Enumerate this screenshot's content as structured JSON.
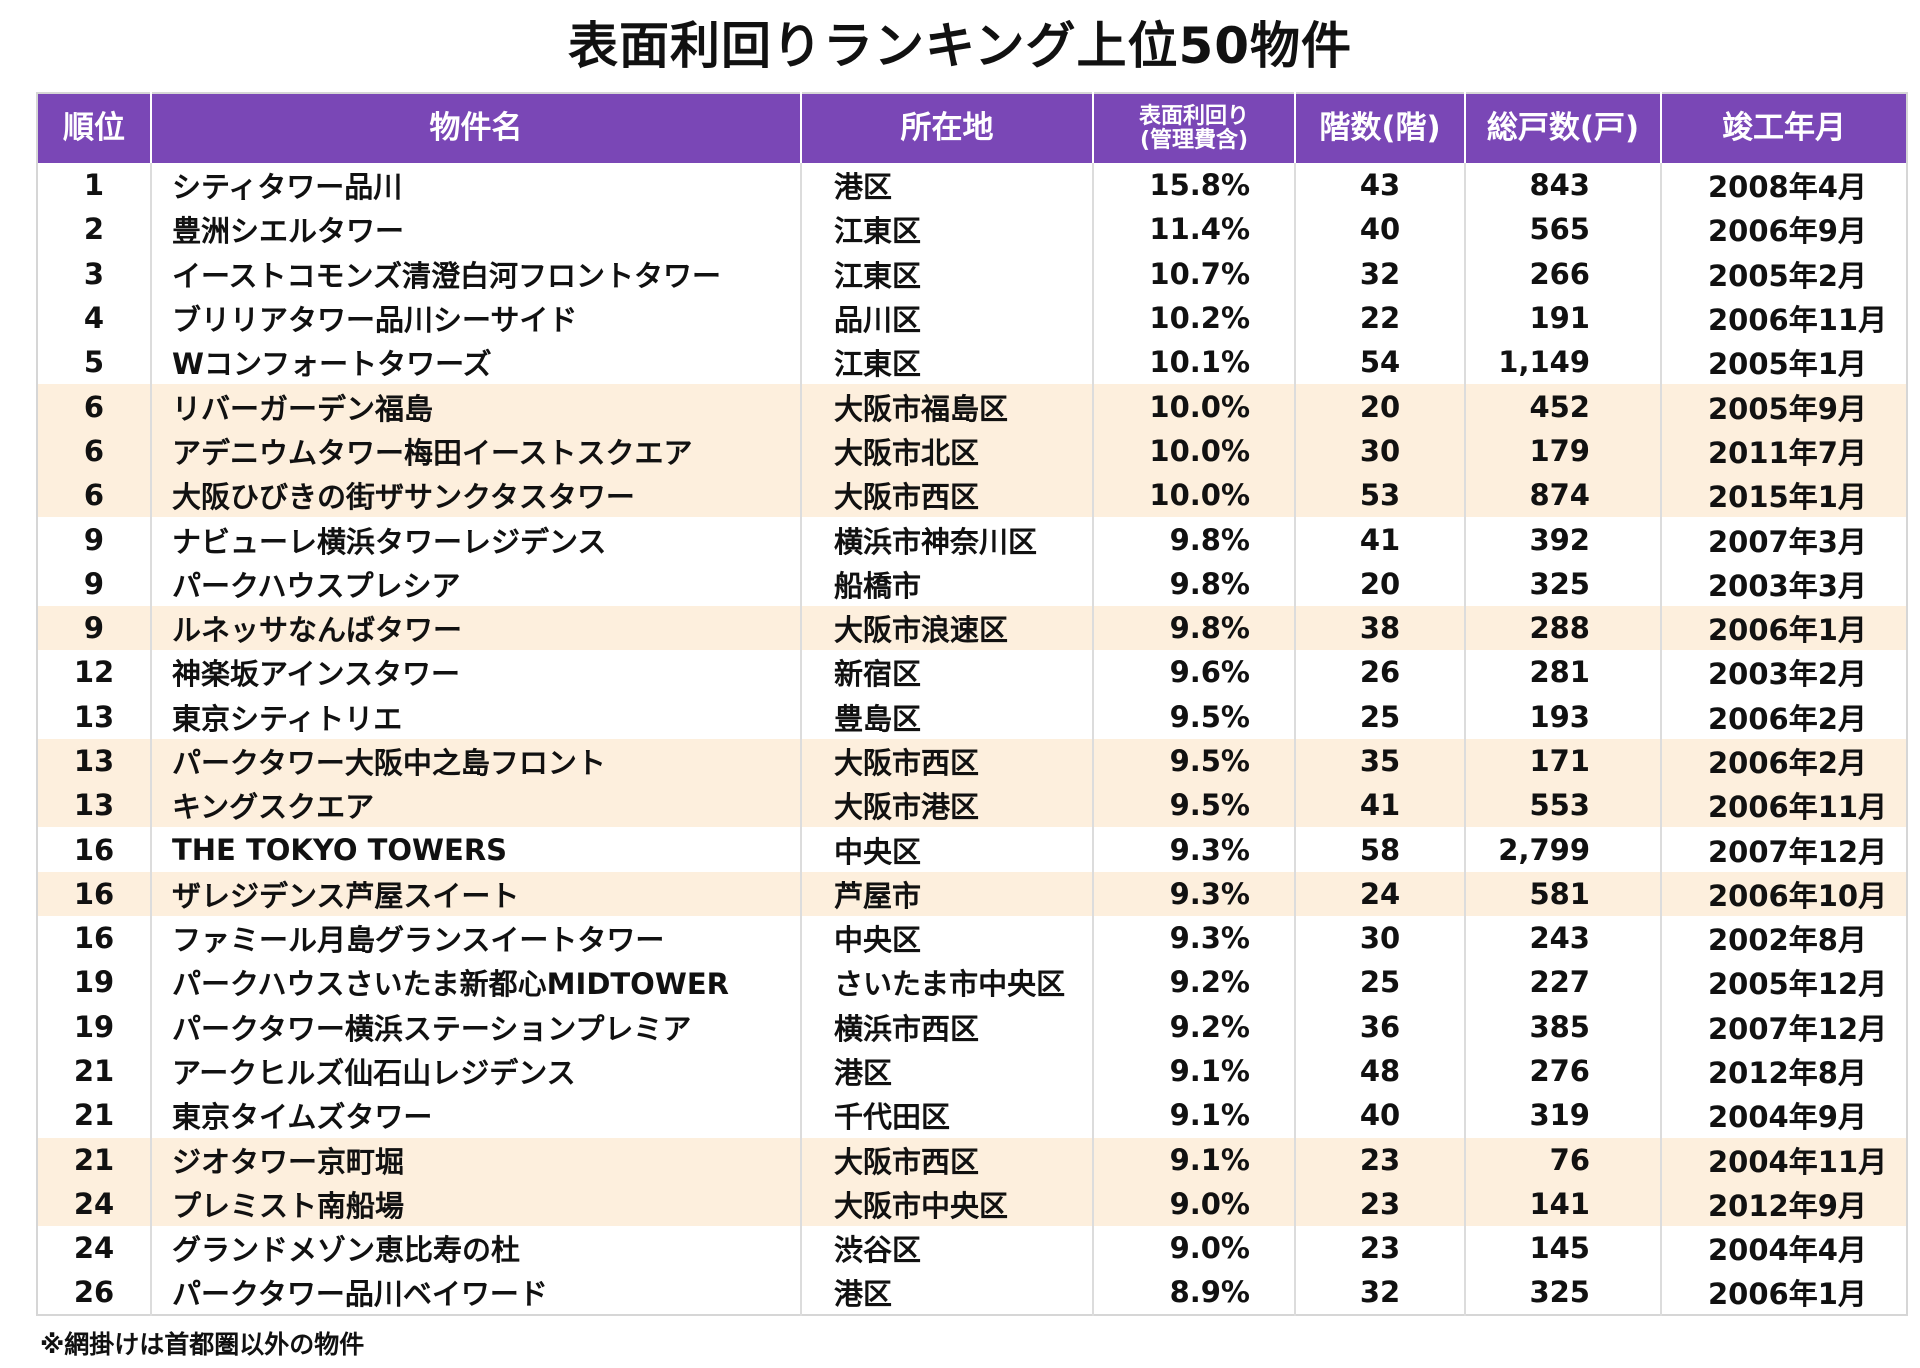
{
  "title": "表面利回りランキング上位50物件",
  "columns": [
    {
      "key": "rank",
      "label": "順位"
    },
    {
      "key": "name",
      "label": "物件名"
    },
    {
      "key": "location",
      "label": "所在地"
    },
    {
      "key": "yield",
      "label": "表面利回り",
      "sub": "(管理費含)"
    },
    {
      "key": "floors",
      "label": "階数(階)"
    },
    {
      "key": "units",
      "label": "総戸数(戸)"
    },
    {
      "key": "completed",
      "label": "竣工年月"
    }
  ],
  "rows": [
    {
      "rank": "1",
      "name": "シティタワー品川",
      "location": "港区",
      "yield": "15.8%",
      "floors": "43",
      "units": "843",
      "completed": "2008年4月",
      "highlight": false
    },
    {
      "rank": "2",
      "name": "豊洲シエルタワー",
      "location": "江東区",
      "yield": "11.4%",
      "floors": "40",
      "units": "565",
      "completed": "2006年9月",
      "highlight": false
    },
    {
      "rank": "3",
      "name": "イーストコモンズ清澄白河フロントタワー",
      "location": "江東区",
      "yield": "10.7%",
      "floors": "32",
      "units": "266",
      "completed": "2005年2月",
      "highlight": false
    },
    {
      "rank": "4",
      "name": "ブリリアタワー品川シーサイド",
      "location": "品川区",
      "yield": "10.2%",
      "floors": "22",
      "units": "191",
      "completed": "2006年11月",
      "highlight": false
    },
    {
      "rank": "5",
      "name": "Wコンフォートタワーズ",
      "location": "江東区",
      "yield": "10.1%",
      "floors": "54",
      "units": "1,149",
      "completed": "2005年1月",
      "highlight": false
    },
    {
      "rank": "6",
      "name": "リバーガーデン福島",
      "location": "大阪市福島区",
      "yield": "10.0%",
      "floors": "20",
      "units": "452",
      "completed": "2005年9月",
      "highlight": true
    },
    {
      "rank": "6",
      "name": "アデニウムタワー梅田イーストスクエア",
      "location": "大阪市北区",
      "yield": "10.0%",
      "floors": "30",
      "units": "179",
      "completed": "2011年7月",
      "highlight": true
    },
    {
      "rank": "6",
      "name": "大阪ひびきの街ザサンクタスタワー",
      "location": "大阪市西区",
      "yield": "10.0%",
      "floors": "53",
      "units": "874",
      "completed": "2015年1月",
      "highlight": true
    },
    {
      "rank": "9",
      "name": "ナビューレ横浜タワーレジデンス",
      "location": "横浜市神奈川区",
      "yield": "9.8%",
      "floors": "41",
      "units": "392",
      "completed": "2007年3月",
      "highlight": false
    },
    {
      "rank": "9",
      "name": "パークハウスプレシア",
      "location": "船橋市",
      "yield": "9.8%",
      "floors": "20",
      "units": "325",
      "completed": "2003年3月",
      "highlight": false
    },
    {
      "rank": "9",
      "name": "ルネッサなんばタワー",
      "location": "大阪市浪速区",
      "yield": "9.8%",
      "floors": "38",
      "units": "288",
      "completed": "2006年1月",
      "highlight": true
    },
    {
      "rank": "12",
      "name": "神楽坂アインスタワー",
      "location": "新宿区",
      "yield": "9.6%",
      "floors": "26",
      "units": "281",
      "completed": "2003年2月",
      "highlight": false
    },
    {
      "rank": "13",
      "name": "東京シティトリエ",
      "location": "豊島区",
      "yield": "9.5%",
      "floors": "25",
      "units": "193",
      "completed": "2006年2月",
      "highlight": false
    },
    {
      "rank": "13",
      "name": "パークタワー大阪中之島フロント",
      "location": "大阪市西区",
      "yield": "9.5%",
      "floors": "35",
      "units": "171",
      "completed": "2006年2月",
      "highlight": true
    },
    {
      "rank": "13",
      "name": "キングスクエア",
      "location": "大阪市港区",
      "yield": "9.5%",
      "floors": "41",
      "units": "553",
      "completed": "2006年11月",
      "highlight": true
    },
    {
      "rank": "16",
      "name": "THE TOKYO TOWERS",
      "location": "中央区",
      "yield": "9.3%",
      "floors": "58",
      "units": "2,799",
      "completed": "2007年12月",
      "highlight": false
    },
    {
      "rank": "16",
      "name": "ザレジデンス芦屋スイート",
      "location": "芦屋市",
      "yield": "9.3%",
      "floors": "24",
      "units": "581",
      "completed": "2006年10月",
      "highlight": true
    },
    {
      "rank": "16",
      "name": "ファミール月島グランスイートタワー",
      "location": "中央区",
      "yield": "9.3%",
      "floors": "30",
      "units": "243",
      "completed": "2002年8月",
      "highlight": false
    },
    {
      "rank": "19",
      "name": "パークハウスさいたま新都心MIDTOWER",
      "location": "さいたま市中央区",
      "yield": "9.2%",
      "floors": "25",
      "units": "227",
      "completed": "2005年12月",
      "highlight": false
    },
    {
      "rank": "19",
      "name": "パークタワー横浜ステーションプレミア",
      "location": "横浜市西区",
      "yield": "9.2%",
      "floors": "36",
      "units": "385",
      "completed": "2007年12月",
      "highlight": false
    },
    {
      "rank": "21",
      "name": "アークヒルズ仙石山レジデンス",
      "location": "港区",
      "yield": "9.1%",
      "floors": "48",
      "units": "276",
      "completed": "2012年8月",
      "highlight": false
    },
    {
      "rank": "21",
      "name": "東京タイムズタワー",
      "location": "千代田区",
      "yield": "9.1%",
      "floors": "40",
      "units": "319",
      "completed": "2004年9月",
      "highlight": false
    },
    {
      "rank": "21",
      "name": "ジオタワー京町堀",
      "location": "大阪市西区",
      "yield": "9.1%",
      "floors": "23",
      "units": "76",
      "completed": "2004年11月",
      "highlight": true
    },
    {
      "rank": "24",
      "name": "プレミスト南船場",
      "location": "大阪市中央区",
      "yield": "9.0%",
      "floors": "23",
      "units": "141",
      "completed": "2012年9月",
      "highlight": true
    },
    {
      "rank": "24",
      "name": "グランドメゾン恵比寿の杜",
      "location": "渋谷区",
      "yield": "9.0%",
      "floors": "23",
      "units": "145",
      "completed": "2004年4月",
      "highlight": false
    },
    {
      "rank": "26",
      "name": "パークタワー品川ベイワード",
      "location": "港区",
      "yield": "8.9%",
      "floors": "32",
      "units": "325",
      "completed": "2006年1月",
      "highlight": false
    }
  ],
  "note": "※網掛けは首都圏以外の物件",
  "colors": {
    "header_bg": "#7a47b6",
    "highlight_bg": "#fdefdd",
    "border": "#dcdcdc"
  }
}
